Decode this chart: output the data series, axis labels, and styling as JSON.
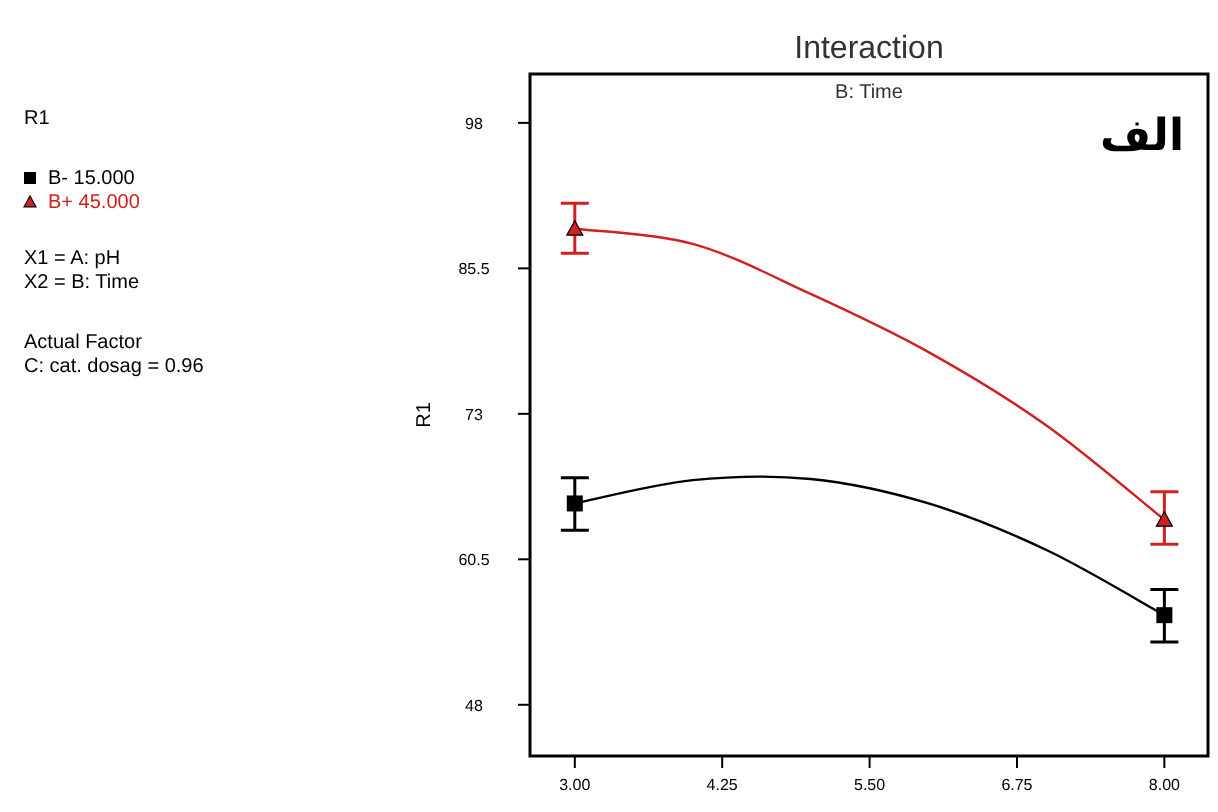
{
  "chart_data": {
    "type": "line",
    "title": "Interaction",
    "subtitle": "B: Time",
    "ylabel": "R1",
    "legend_title": "R1",
    "annotations": [
      "الف",
      "X1 = A: pH",
      "X2 = B: Time",
      "Actual Factor",
      "C: cat. dosag = 0.96"
    ],
    "series": [
      {
        "type": "line",
        "color": "#000000",
        "x": [
          3,
          4,
          5,
          6,
          7,
          8
        ],
        "values": [
          65.3,
          67.3,
          67.4,
          65.3,
          61.3,
          55.7
        ]
      },
      {
        "type": "line",
        "color": "#d02020",
        "x": [
          3,
          4,
          5,
          6,
          7,
          8
        ],
        "values": [
          88.9,
          87.6,
          83.3,
          78.3,
          72.0,
          63.9
        ]
      },
      {
        "type": "scatter",
        "name": "B- 15.000",
        "color": "#000000",
        "marker": "square",
        "x": [
          3,
          8
        ],
        "values": [
          65.3,
          55.7
        ],
        "errors": [
          [
            63.0,
            67.5
          ],
          [
            53.4,
            57.9
          ]
        ]
      },
      {
        "type": "scatter",
        "name": "B+ 45.000",
        "color": "#d02020",
        "marker": "triangle",
        "x": [
          3,
          8
        ],
        "values": [
          88.9,
          63.9
        ],
        "errors": [
          [
            86.8,
            91.1
          ],
          [
            61.8,
            66.3
          ]
        ]
      }
    ],
    "xlim": [
      2.62,
      8.37
    ],
    "ylim": [
      43.6,
      102.2
    ],
    "xticks": [
      {
        "value": 3,
        "label": "3.00"
      },
      {
        "value": 4.25,
        "label": "4.25"
      },
      {
        "value": 5.5,
        "label": "5.50"
      },
      {
        "value": 6.75,
        "label": "6.75"
      },
      {
        "value": 8,
        "label": "8.00"
      }
    ],
    "yticks": [
      48,
      60.5,
      73,
      85.5,
      98
    ],
    "legend": "left"
  }
}
